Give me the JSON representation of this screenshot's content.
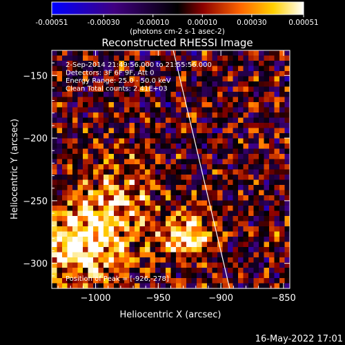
{
  "chart_data": {
    "type": "heatmap",
    "title": "Reconstructed RHESSI Image",
    "xlabel": "Heliocentric X (arcsec)",
    "ylabel": "Heliocentric Y (arcsec)",
    "xlim": [
      -1035,
      -845
    ],
    "ylim": [
      -320,
      -130
    ],
    "x_ticks": [
      -1000,
      -950,
      -900,
      -850
    ],
    "x_tick_labels": [
      "−1000",
      "−950",
      "−900",
      "−850"
    ],
    "y_ticks": [
      -150,
      -200,
      -250,
      -300
    ],
    "y_tick_labels": [
      "−150",
      "−200",
      "−250",
      "−300"
    ],
    "colorbar": {
      "min": -0.00051,
      "max": 0.00051,
      "ticks": [
        -0.00051,
        -0.0003,
        -0.0001,
        0.0001,
        0.0003,
        0.00051
      ],
      "tick_labels": [
        "-0.00051",
        "-0.00030",
        "-0.00010",
        "0.00010",
        "0.00030",
        "0.00051"
      ],
      "unit_label": "(photons cm-2 s-1 asec-2)",
      "colormap": [
        "#0000ff",
        "#400080",
        "#000000",
        "#8b0000",
        "#ff6600",
        "#ffd000",
        "#ffffff"
      ]
    },
    "annotations": [
      "2-Sep-2014 21:49:56.000 to 21:55:56.000",
      "Detectors: 3F 6F 9F, Att 0",
      "Energy Range: 25.0 - 50.0 keV",
      "Clean     Total counts: 2.41E+03"
    ],
    "peak": {
      "label": "Position of Peak = [-926,-278]",
      "x": -926,
      "y": -278
    },
    "limb_line": [
      [
        -938,
        -130
      ],
      [
        -893,
        -320
      ]
    ],
    "grid": false
  },
  "footer": {
    "timestamp": "16-May-2022 17:01"
  }
}
